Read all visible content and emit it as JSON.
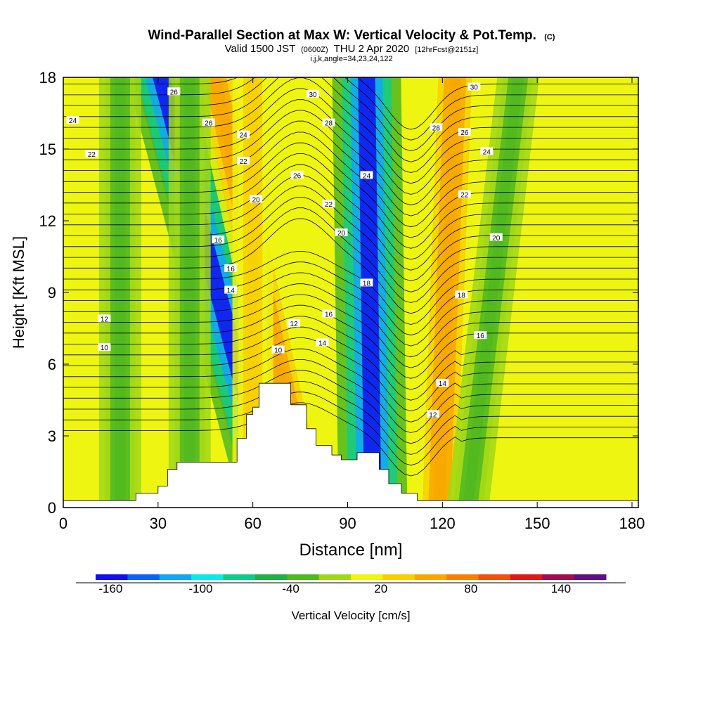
{
  "chart_data": {
    "type": "heatmap",
    "title": "Wind-Parallel Section at Max W: Vertical Velocity & Pot.Temp.",
    "title_unit": "(C)",
    "subtitle_pre": "Valid 1500 JST",
    "subtitle_z": "(0600Z)",
    "subtitle_date": "THU 2 Apr 2020",
    "subtitle_fcst": "[12hrFcst@2151z]",
    "subtitle2": "i,j,k,angle=34,23,24,122",
    "xlabel": "Distance [nm]",
    "ylabel": "Height [Kft MSL]",
    "xlim": [
      0,
      182
    ],
    "ylim": [
      0,
      18
    ],
    "xticks": [
      0,
      30,
      60,
      90,
      120,
      150,
      180
    ],
    "yticks": [
      0,
      3,
      6,
      9,
      12,
      15,
      18
    ],
    "colorbar": {
      "label": "Vertical Velocity [cm/s]",
      "range": [
        -170,
        170
      ],
      "tick_labels": [
        "-160",
        "-100",
        "-40",
        "20",
        "80",
        "140"
      ],
      "tick_values": [
        -160,
        -100,
        -40,
        20,
        80,
        140
      ],
      "colors": [
        "#1010ee",
        "#1060f5",
        "#10a8f5",
        "#10e8e8",
        "#10cc88",
        "#22b045",
        "#50b820",
        "#a0d818",
        "#eef510",
        "#f8d000",
        "#f8a800",
        "#f88000",
        "#f05010",
        "#e01818",
        "#a01050",
        "#601080"
      ]
    },
    "terrain": [
      {
        "x": 0,
        "h": 0.3
      },
      {
        "x": 20,
        "h": 0.3
      },
      {
        "x": 23,
        "h": 0.6
      },
      {
        "x": 30,
        "h": 0.9
      },
      {
        "x": 33,
        "h": 1.6
      },
      {
        "x": 36,
        "h": 1.9
      },
      {
        "x": 55,
        "h": 2.9
      },
      {
        "x": 58,
        "h": 3.9
      },
      {
        "x": 60,
        "h": 4.2
      },
      {
        "x": 62,
        "h": 5.2
      },
      {
        "x": 72,
        "h": 4.3
      },
      {
        "x": 77,
        "h": 3.3
      },
      {
        "x": 80,
        "h": 2.6
      },
      {
        "x": 85,
        "h": 2.2
      },
      {
        "x": 88,
        "h": 2.0
      },
      {
        "x": 93,
        "h": 2.3
      },
      {
        "x": 100,
        "h": 1.6
      },
      {
        "x": 103,
        "h": 1.0
      },
      {
        "x": 107,
        "h": 0.6
      },
      {
        "x": 112,
        "h": 0.3
      },
      {
        "x": 182,
        "h": 0.3
      }
    ],
    "w_bands": [
      {
        "x0": 68,
        "x1": 32,
        "w": -110
      },
      {
        "x0": 67,
        "x1": 31,
        "w": -150
      },
      {
        "x0": 98,
        "x1": 96,
        "w": -150
      },
      {
        "x0": 78,
        "x1": 48,
        "w": 60
      },
      {
        "x0": 119,
        "x1": 124,
        "w": 60
      },
      {
        "x0": 60,
        "x1": 60,
        "w": 35
      },
      {
        "x0": 128,
        "x1": 144,
        "w": -40
      },
      {
        "x0": 40,
        "x1": 40,
        "w": -40
      },
      {
        "x0": 18,
        "x1": 18,
        "w": -40
      }
    ],
    "theta_levels": [
      10,
      12,
      14,
      16,
      18,
      20,
      22,
      24,
      26,
      28,
      30
    ],
    "theta_labels": [
      {
        "text": "10",
        "x": 13,
        "y": 6.7
      },
      {
        "text": "12",
        "x": 13,
        "y": 7.9
      },
      {
        "text": "14",
        "x": 53,
        "y": 9.1
      },
      {
        "text": "16",
        "x": 53,
        "y": 10.0
      },
      {
        "text": "16",
        "x": 49,
        "y": 11.2
      },
      {
        "text": "18",
        "x": 96,
        "y": 9.4
      },
      {
        "text": "18",
        "x": 126,
        "y": 8.9
      },
      {
        "text": "16",
        "x": 132,
        "y": 7.2
      },
      {
        "text": "14",
        "x": 120,
        "y": 5.2
      },
      {
        "text": "12",
        "x": 117,
        "y": 3.9
      },
      {
        "text": "10",
        "x": 68,
        "y": 6.6
      },
      {
        "text": "12",
        "x": 73,
        "y": 7.7
      },
      {
        "text": "14",
        "x": 82,
        "y": 6.9
      },
      {
        "text": "16",
        "x": 84,
        "y": 8.1
      },
      {
        "text": "20",
        "x": 61,
        "y": 12.9
      },
      {
        "text": "20",
        "x": 88,
        "y": 11.5
      },
      {
        "text": "20",
        "x": 137,
        "y": 11.3
      },
      {
        "text": "22",
        "x": 84,
        "y": 12.7
      },
      {
        "text": "22",
        "x": 57,
        "y": 14.5
      },
      {
        "text": "22",
        "x": 127,
        "y": 13.1
      },
      {
        "text": "22",
        "x": 9,
        "y": 14.8
      },
      {
        "text": "24",
        "x": 3,
        "y": 16.2
      },
      {
        "text": "24",
        "x": 57,
        "y": 15.6
      },
      {
        "text": "24",
        "x": 96,
        "y": 13.9
      },
      {
        "text": "24",
        "x": 134,
        "y": 14.9
      },
      {
        "text": "26",
        "x": 74,
        "y": 13.9
      },
      {
        "text": "26",
        "x": 127,
        "y": 15.7
      },
      {
        "text": "26",
        "x": 46,
        "y": 16.1
      },
      {
        "text": "26",
        "x": 35,
        "y": 17.4
      },
      {
        "text": "28",
        "x": 84,
        "y": 16.1
      },
      {
        "text": "28",
        "x": 118,
        "y": 15.9
      },
      {
        "text": "30",
        "x": 79,
        "y": 17.3
      },
      {
        "text": "30",
        "x": 130,
        "y": 17.6
      }
    ]
  }
}
